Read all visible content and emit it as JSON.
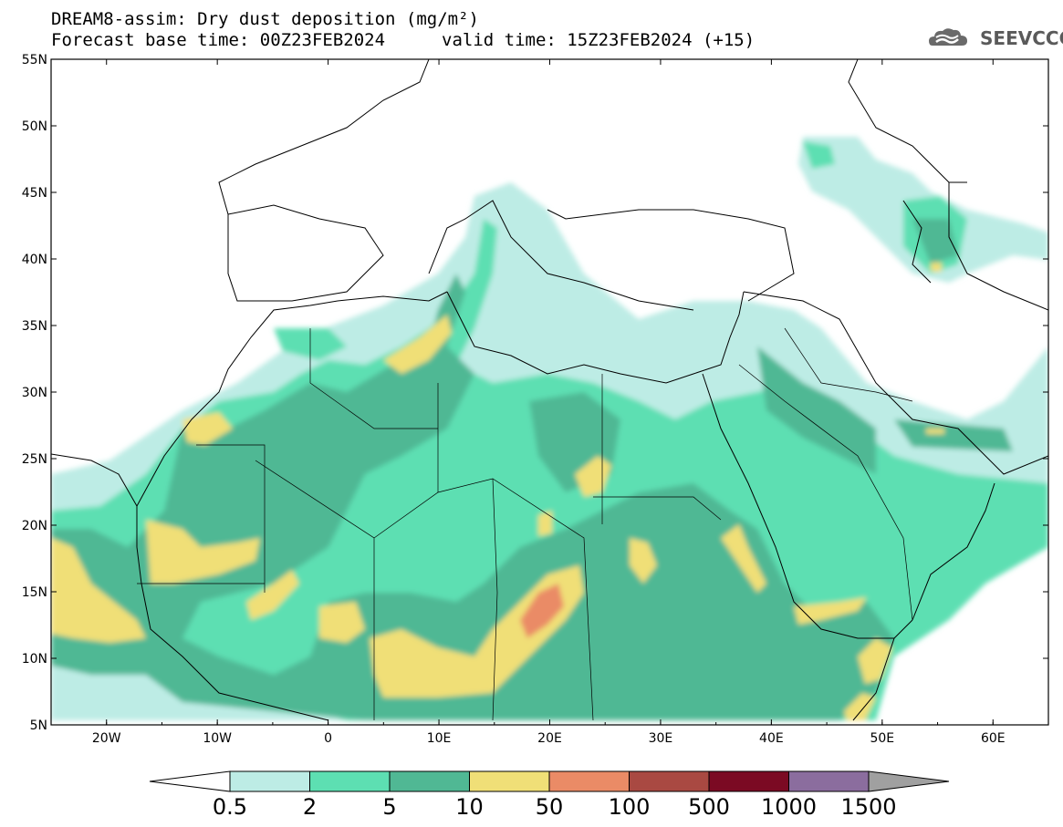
{
  "title": {
    "line1": "DREAM8-assim: Dry dust deposition (mg/m²)",
    "line2": "Forecast base time: 00Z23FEB2024",
    "valid": "valid time: 15Z23FEB2024 (+15)"
  },
  "logo": {
    "text": "SEEVCCC",
    "icon": "cloud-logo-icon"
  },
  "map": {
    "lon_range": [
      -25,
      65
    ],
    "lat_range": [
      5,
      55
    ],
    "lat_ticks": [
      {
        "value": 5,
        "label": "5N"
      },
      {
        "value": 10,
        "label": "10N"
      },
      {
        "value": 15,
        "label": "15N"
      },
      {
        "value": 20,
        "label": "20N"
      },
      {
        "value": 25,
        "label": "25N"
      },
      {
        "value": 30,
        "label": "30N"
      },
      {
        "value": 35,
        "label": "35N"
      },
      {
        "value": 40,
        "label": "40N"
      },
      {
        "value": 45,
        "label": "45N"
      },
      {
        "value": 50,
        "label": "50N"
      },
      {
        "value": 55,
        "label": "55N"
      }
    ],
    "lon_ticks": [
      {
        "value": -20,
        "label": "20W"
      },
      {
        "value": -10,
        "label": "10W"
      },
      {
        "value": 0,
        "label": "0"
      },
      {
        "value": 10,
        "label": "10E"
      },
      {
        "value": 20,
        "label": "20E"
      },
      {
        "value": 30,
        "label": "30E"
      },
      {
        "value": 40,
        "label": "40E"
      },
      {
        "value": 50,
        "label": "50E"
      },
      {
        "value": 60,
        "label": "60E"
      }
    ]
  },
  "colorbar": {
    "colors": [
      "#bdece5",
      "#5ddfb2",
      "#50b894",
      "#f0df77",
      "#ea8b66",
      "#a94942",
      "#7b0a23",
      "#8b6d9e"
    ],
    "left_arrow_color": "#ffffff",
    "right_arrow_color": "#a0a0a0",
    "labels": [
      "0.5",
      "2",
      "5",
      "10",
      "50",
      "100",
      "500",
      "1000",
      "1500"
    ]
  }
}
